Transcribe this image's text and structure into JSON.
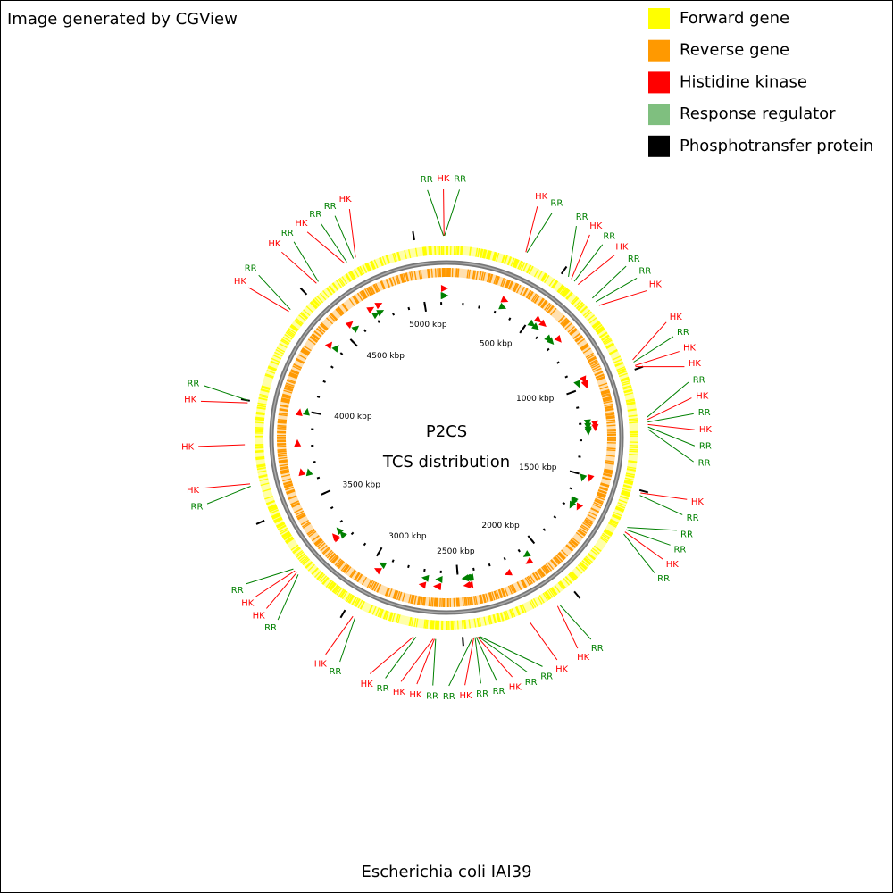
{
  "header": {
    "title": "Image generated by CGView"
  },
  "legend": [
    {
      "label": "Forward gene",
      "color": "#ffff00"
    },
    {
      "label": "Reverse gene",
      "color": "#ff9900"
    },
    {
      "label": "Histidine kinase",
      "color": "#ff0000"
    },
    {
      "label": "Response regulator",
      "color": "#7fbf7f"
    },
    {
      "label": "Phosphotransfer protein",
      "color": "#000000"
    }
  ],
  "center": {
    "title": "P2CS",
    "subtitle": "TCS distribution"
  },
  "footer": {
    "caption": "Escherichia coli IAI39"
  },
  "axis": {
    "range": [
      0,
      5132
    ],
    "minor_step": 100,
    "ticks": [
      {
        "value": 500,
        "label": "500 kbp"
      },
      {
        "value": 1000,
        "label": "1000 kbp"
      },
      {
        "value": 1500,
        "label": "1500 kbp"
      },
      {
        "value": 2000,
        "label": "2000 kbp"
      },
      {
        "value": 2500,
        "label": "2500 kbp"
      },
      {
        "value": 3000,
        "label": "3000 kbp"
      },
      {
        "value": 3500,
        "label": "3500 kbp"
      },
      {
        "value": 4000,
        "label": "4000 kbp"
      },
      {
        "value": 4500,
        "label": "4500 kbp"
      },
      {
        "value": 5000,
        "label": "5000 kbp"
      }
    ]
  },
  "label_colors": {
    "HK": "#ff0000",
    "RR": "#008000"
  },
  "features": [
    {
      "label": "RR",
      "pos": 5120
    },
    {
      "label": "HK",
      "pos": 5122
    },
    {
      "label": "RR",
      "pos": 5124
    },
    {
      "label": "HK",
      "pos": 330
    },
    {
      "label": "RR",
      "pos": 335
    },
    {
      "label": "RR",
      "pos": 530
    },
    {
      "label": "HK",
      "pos": 545
    },
    {
      "label": "RR",
      "pos": 560
    },
    {
      "label": "HK",
      "pos": 580
    },
    {
      "label": "RR",
      "pos": 660
    },
    {
      "label": "RR",
      "pos": 680
    },
    {
      "label": "HK",
      "pos": 700
    },
    {
      "label": "HK",
      "pos": 960
    },
    {
      "label": "RR",
      "pos": 970
    },
    {
      "label": "HK",
      "pos": 985
    },
    {
      "label": "HK",
      "pos": 990
    },
    {
      "label": "RR",
      "pos": 1200
    },
    {
      "label": "HK",
      "pos": 1210
    },
    {
      "label": "RR",
      "pos": 1220
    },
    {
      "label": "HK",
      "pos": 1230
    },
    {
      "label": "RR",
      "pos": 1240
    },
    {
      "label": "RR",
      "pos": 1250
    },
    {
      "label": "HK",
      "pos": 1510
    },
    {
      "label": "RR",
      "pos": 1520
    },
    {
      "label": "RR",
      "pos": 1660
    },
    {
      "label": "RR",
      "pos": 1670
    },
    {
      "label": "HK",
      "pos": 1680
    },
    {
      "label": "RR",
      "pos": 1690
    },
    {
      "label": "RR",
      "pos": 2080
    },
    {
      "label": "HK",
      "pos": 2090
    },
    {
      "label": "HK",
      "pos": 2220
    },
    {
      "label": "RR",
      "pos": 2430
    },
    {
      "label": "RR",
      "pos": 2435
    },
    {
      "label": "HK",
      "pos": 2440
    },
    {
      "label": "RR",
      "pos": 2445
    },
    {
      "label": "RR",
      "pos": 2450
    },
    {
      "label": "HK",
      "pos": 2455
    },
    {
      "label": "RR",
      "pos": 2460
    },
    {
      "label": "RR",
      "pos": 2610
    },
    {
      "label": "HK",
      "pos": 2615
    },
    {
      "label": "HK",
      "pos": 2620
    },
    {
      "label": "RR",
      "pos": 2690
    },
    {
      "label": "HK",
      "pos": 2700
    },
    {
      "label": "RR",
      "pos": 2950
    },
    {
      "label": "HK",
      "pos": 2960
    },
    {
      "label": "RR",
      "pos": 3240
    },
    {
      "label": "HK",
      "pos": 3250
    },
    {
      "label": "HK",
      "pos": 3260
    },
    {
      "label": "RR",
      "pos": 3270
    },
    {
      "label": "RR",
      "pos": 3650
    },
    {
      "label": "HK",
      "pos": 3660
    },
    {
      "label": "HK",
      "pos": 3820
    },
    {
      "label": "HK",
      "pos": 3990
    },
    {
      "label": "RR",
      "pos": 4000
    },
    {
      "label": "HK",
      "pos": 4400
    },
    {
      "label": "RR",
      "pos": 4410
    },
    {
      "label": "HK",
      "pos": 4560
    },
    {
      "label": "RR",
      "pos": 4570
    },
    {
      "label": "HK",
      "pos": 4700
    },
    {
      "label": "RR",
      "pos": 4710
    },
    {
      "label": "RR",
      "pos": 4740
    },
    {
      "label": "HK",
      "pos": 4750
    }
  ]
}
